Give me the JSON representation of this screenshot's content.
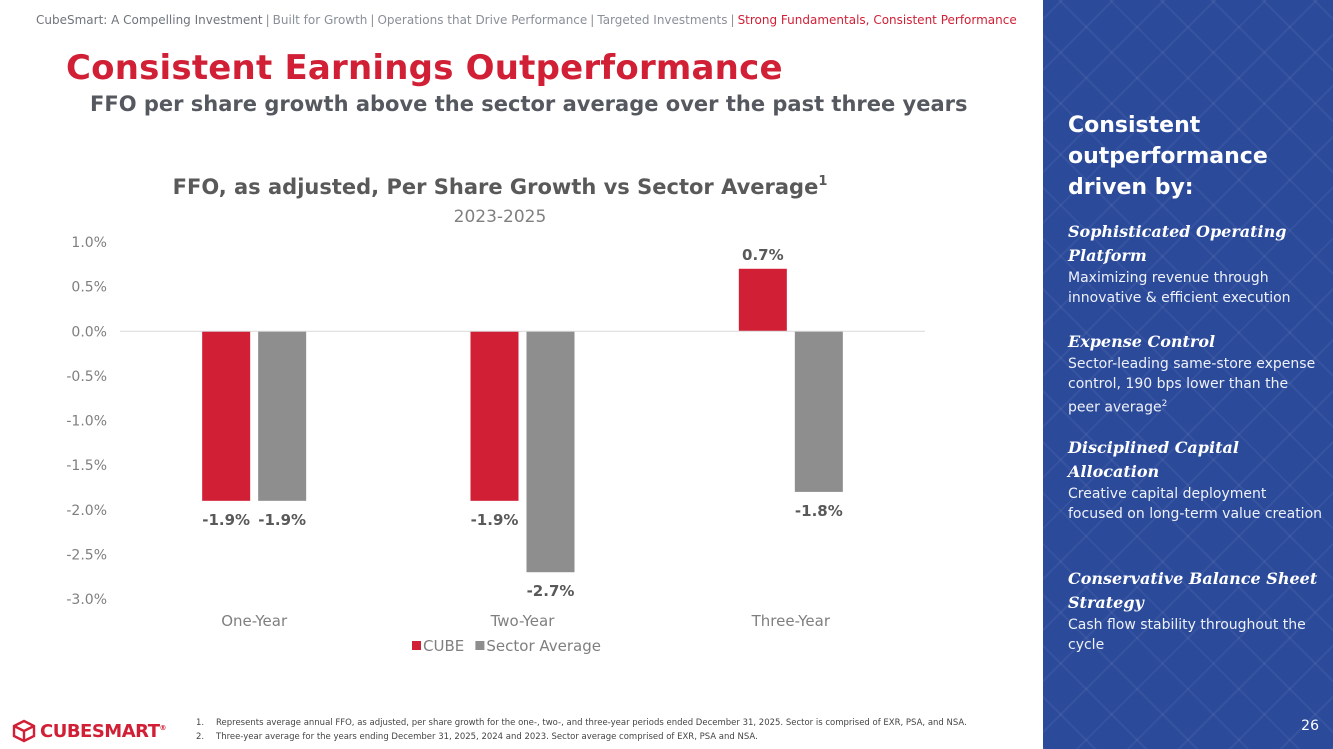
{
  "breadcrumb": {
    "items": [
      "CubeSmart: A Compelling Investment",
      "Built for Growth",
      "Operations that Drive Performance",
      "Targeted Investments",
      "Strong Fundamentals, Consistent Performance"
    ],
    "separator": "|"
  },
  "title": "Consistent Earnings Outperformance",
  "subtitle": "FFO per share growth above the sector average over the past three years",
  "chart_data": {
    "type": "bar",
    "title": "FFO, as adjusted, Per Share Growth vs Sector Average",
    "title_superscript": "1",
    "subtitle": "2023-2025",
    "categories": [
      "One-Year",
      "Two-Year",
      "Three-Year"
    ],
    "series": [
      {
        "name": "CUBE",
        "values": [
          -1.9,
          -1.9,
          0.7
        ],
        "labels": [
          "-1.9%",
          "-1.9%",
          "0.7%"
        ],
        "color": "#d11f35"
      },
      {
        "name": "Sector Average",
        "values": [
          -1.9,
          -2.7,
          -1.8
        ],
        "labels": [
          "-1.9%",
          "-2.7%",
          "-1.8%"
        ],
        "color": "#8e8e8e"
      }
    ],
    "ylim": [
      -3.0,
      1.0
    ],
    "yticks": [
      "1.0%",
      "0.5%",
      "0.0%",
      "-0.5%",
      "-1.0%",
      "-1.5%",
      "-2.0%",
      "-2.5%",
      "-3.0%"
    ],
    "ytick_values": [
      1.0,
      0.5,
      0.0,
      -0.5,
      -1.0,
      -1.5,
      -2.0,
      -2.5,
      -3.0
    ],
    "legend": "bottom",
    "xlabel": "",
    "ylabel": "",
    "grid": false
  },
  "sidebar": {
    "heading": "Consistent outperformance driven by:",
    "drivers": [
      {
        "title": "Sophisticated Operating Platform",
        "desc": "Maximizing revenue through innovative & efficient execution",
        "sup": ""
      },
      {
        "title": "Expense Control",
        "desc": "Sector-leading same-store expense control, 190 bps lower than the peer average",
        "sup": "2"
      },
      {
        "title": "Disciplined Capital Allocation",
        "desc": "Creative capital deployment focused on long-term value creation",
        "sup": ""
      },
      {
        "title": "Conservative Balance Sheet Strategy",
        "desc": "Cash flow stability throughout the cycle",
        "sup": ""
      }
    ],
    "background": "#2b4a9a"
  },
  "footnotes": [
    {
      "num": "1.",
      "text": "Represents average annual FFO, as adjusted, per share growth for the one-, two-, and three-year periods ended December 31, 2025. Sector is comprised of EXR, PSA, and NSA."
    },
    {
      "num": "2.",
      "text": "Three-year average for the years ending December 31, 2025, 2024 and 2023. Sector average comprised of EXR, PSA and NSA."
    }
  ],
  "logo": {
    "text": "CUBESMART",
    "trademark": "®"
  },
  "page_number": "26"
}
